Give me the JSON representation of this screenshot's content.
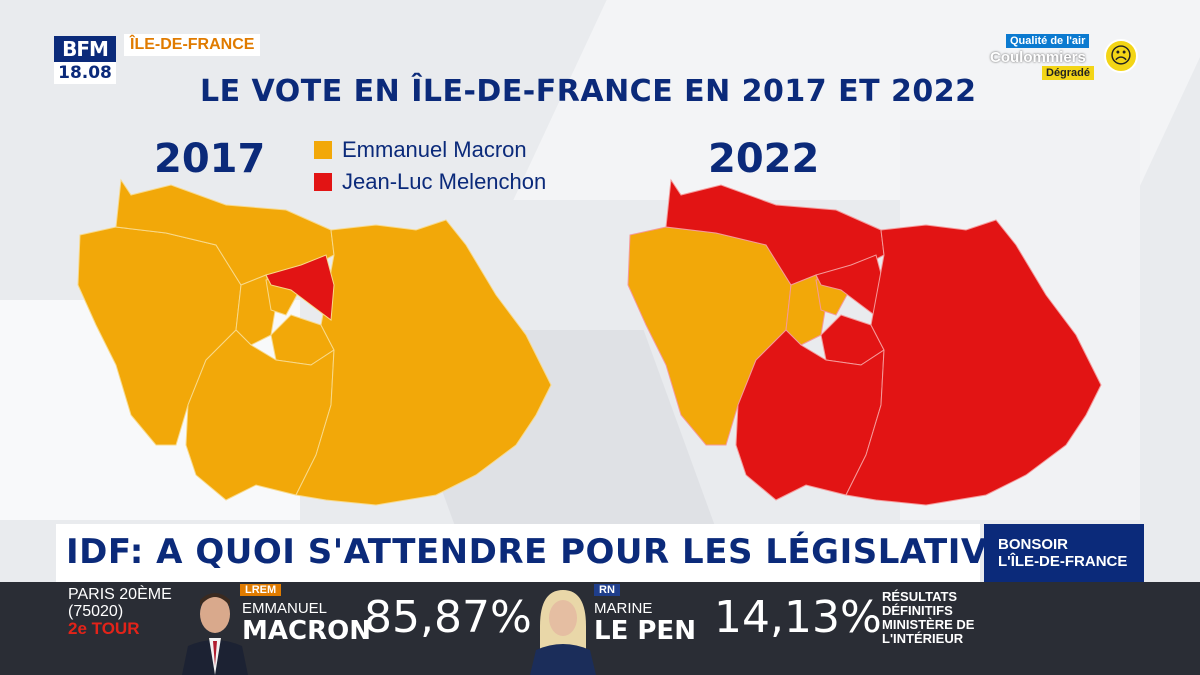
{
  "logo": {
    "brand": "BFM",
    "time": "18.08"
  },
  "region_tag": "ÎLE-DE-FRANCE",
  "air_quality": {
    "title": "Qualité de l'air",
    "city": "Coulommiers",
    "status": "Dégradé",
    "icon": "sad-face-icon"
  },
  "main_title": "LE VOTE EN ÎLE-DE-FRANCE EN 2017 ET 2022",
  "maps": {
    "year_left": "2017",
    "year_right": "2022"
  },
  "legend": [
    {
      "label": "Emmanuel Macron",
      "color": "#f2a809"
    },
    {
      "label": "Jean-Luc Melenchon",
      "color": "#e21414"
    }
  ],
  "headline": "IDF: A QUOI S'ATTENDRE POUR LES LÉGISLATIVES ?",
  "show_tag": {
    "line1": "BONSOIR",
    "line2": "L'ÎLE-DE-FRANCE"
  },
  "results": {
    "location_line1": "PARIS 20ÈME",
    "location_line2": "(75020)",
    "round": "2e TOUR",
    "candidates": [
      {
        "party": "LREM",
        "first": "EMMANUEL",
        "last": "MACRON",
        "pct": "85,87%",
        "party_color": "#e07b00"
      },
      {
        "party": "RN",
        "first": "MARINE",
        "last": "LE PEN",
        "pct": "14,13%",
        "party_color": "#1f3e8c"
      }
    ],
    "note_line1": "RÉSULTATS",
    "note_line2": "DÉFINITIFS",
    "note_line3": "MINISTÈRE DE",
    "note_line4": "L'INTÉRIEUR"
  }
}
